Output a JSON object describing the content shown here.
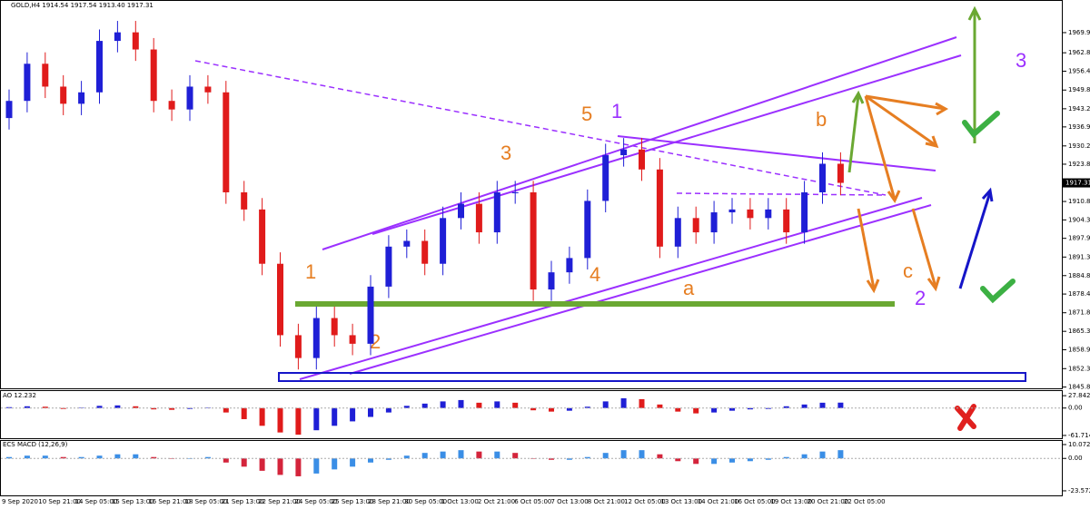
{
  "header": "GOLD,H4  1914.54 1917.54 1913.40 1917.31",
  "chart_data": [
    {
      "type": "candlestick",
      "open": [
        1940,
        1946,
        1959,
        1951,
        1945,
        1949,
        1967,
        1970,
        1964,
        1946,
        1943,
        1951,
        1949,
        1914,
        1908,
        1889,
        1864,
        1856,
        1870,
        1864,
        1861,
        1881,
        1895,
        1897,
        1889,
        1905,
        1910,
        1900,
        1914,
        1914,
        1880,
        1886,
        1891,
        1911,
        1927,
        1929,
        1922,
        1895,
        1905,
        1900,
        1907,
        1908,
        1905,
        1908,
        1900,
        1914,
        1924
      ],
      "high": [
        1950,
        1963,
        1963,
        1955,
        1953,
        1971,
        1974,
        1974,
        1968,
        1950,
        1955,
        1955,
        1953,
        1918,
        1912,
        1893,
        1868,
        1874,
        1874,
        1868,
        1885,
        1899,
        1901,
        1901,
        1909,
        1914,
        1914,
        1918,
        1918,
        1918,
        1890,
        1895,
        1915,
        1931,
        1933,
        1933,
        1926,
        1909,
        1909,
        1911,
        1912,
        1912,
        1912,
        1912,
        1918,
        1928,
        1928
      ],
      "low": [
        1936,
        1942,
        1947,
        1941,
        1941,
        1945,
        1963,
        1960,
        1942,
        1939,
        1939,
        1945,
        1910,
        1904,
        1885,
        1860,
        1852,
        1852,
        1860,
        1857,
        1857,
        1877,
        1891,
        1885,
        1885,
        1901,
        1896,
        1896,
        1910,
        1876,
        1876,
        1882,
        1887,
        1907,
        1923,
        1918,
        1891,
        1891,
        1896,
        1896,
        1903,
        1901,
        1901,
        1896,
        1896,
        1910,
        1913
      ],
      "close": [
        1946,
        1959,
        1951,
        1945,
        1949,
        1967,
        1970,
        1964,
        1946,
        1943,
        1951,
        1949,
        1914,
        1908,
        1889,
        1864,
        1856,
        1870,
        1864,
        1861,
        1881,
        1895,
        1897,
        1889,
        1905,
        1910,
        1900,
        1914,
        1914,
        1880,
        1886,
        1891,
        1911,
        1927,
        1929,
        1922,
        1895,
        1905,
        1900,
        1907,
        1908,
        1905,
        1908,
        1900,
        1914,
        1924,
        1917.31
      ],
      "up_color": "#1f1fd6",
      "down_color": "#e01b1b",
      "last_price": 1917.31,
      "ylim": [
        1845.4,
        1981.0
      ],
      "yticks": [
        {
          "value": 1969.9,
          "label": "1969.90"
        },
        1962.85,
        1956.4,
        {
          "value": 1949.8,
          "label": "1949.80"
        },
        1943.25,
        {
          "value": 1936.9,
          "label": "1936.90"
        },
        1930.25,
        1923.85,
        {
          "value": 1910.8,
          "label": "1910.80"
        },
        1904.35,
        {
          "value": 1897.9,
          "label": "1897.90"
        },
        1891.35,
        1884.85,
        1878.4,
        1871.85,
        1865.35,
        {
          "value": 1858.9,
          "label": "1858.90"
        },
        {
          "value": 1852.3,
          "label": "1852.30"
        },
        1845.85
      ],
      "x_labels": [
        "9 Sep 2020",
        "10 Sep 21:00",
        "14 Sep 05:00",
        "15 Sep 13:00",
        "16 Sep 21:00",
        "18 Sep 05:00",
        "21 Sep 13:00",
        "22 Sep 21:00",
        "24 Sep 05:00",
        "25 Sep 13:00",
        "28 Sep 21:00",
        "30 Sep 05:00",
        "1 Oct 13:00",
        "2 Oct 21:00",
        "6 Oct 05:00",
        "7 Oct 13:00",
        "8 Oct 21:00",
        "12 Oct 05:00",
        "13 Oct 13:00",
        "14 Oct 21:00",
        "16 Oct 05:00",
        "19 Oct 13:00",
        "20 Oct 21:00",
        "22 Oct 05:00"
      ],
      "annotations": {
        "orange": [
          "1",
          "2",
          "3",
          "4",
          "5",
          "a",
          "b",
          "c"
        ],
        "purple": [
          "1",
          "2",
          "3"
        ]
      }
    },
    {
      "type": "histogram",
      "title": "AO 12.232",
      "values": [
        2,
        4,
        3,
        -2,
        1,
        5,
        6,
        4,
        -3,
        -4,
        -2,
        1,
        -10,
        -25,
        -40,
        -55,
        -60,
        -50,
        -40,
        -30,
        -20,
        -10,
        5,
        10,
        15,
        18,
        12,
        15,
        12,
        -5,
        -8,
        -6,
        3,
        15,
        22,
        20,
        8,
        -8,
        -12,
        -10,
        -6,
        -3,
        -2,
        4,
        8,
        12,
        12.232
      ],
      "up_color": "#1f1fd6",
      "down_color": "#e01b1b",
      "ylim": [
        -68,
        38.3
      ],
      "yticks": [
        27.842,
        {
          "value": 0,
          "label": "0.00"
        },
        -61.714
      ]
    },
    {
      "type": "histogram",
      "title": "ECS MACD (12,26,9)",
      "values": [
        1,
        2,
        2,
        1,
        1,
        2,
        3,
        3,
        1,
        0,
        0,
        1,
        -3,
        -6,
        -9,
        -12,
        -13,
        -11,
        -8,
        -6,
        -3,
        -1,
        2,
        4,
        5,
        6,
        5,
        5,
        4,
        0,
        -1,
        -1,
        1,
        4,
        6,
        6,
        3,
        -2,
        -4,
        -4,
        -3,
        -2,
        -1,
        1,
        3,
        5,
        6
      ],
      "up_color": "#3a8ee6",
      "down_color": "#d4243b",
      "ylim": [
        -26.9,
        12.7
      ],
      "yticks": [
        10.0725,
        {
          "value": 0,
          "label": "0.00"
        },
        -23.5729
      ]
    }
  ]
}
